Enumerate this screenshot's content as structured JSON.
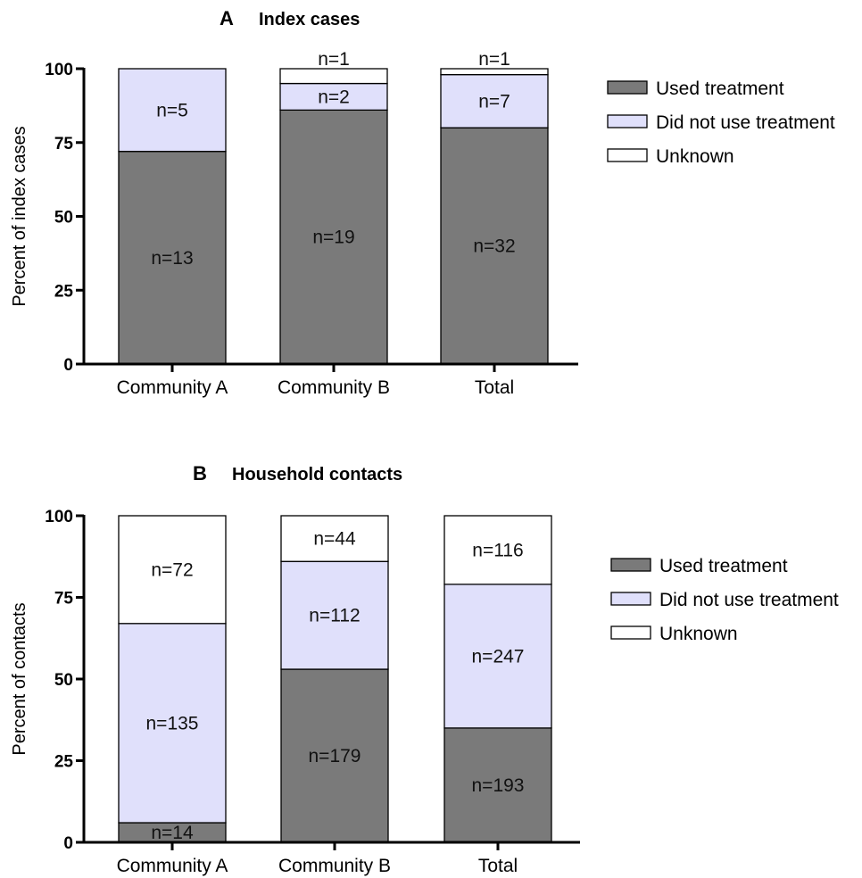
{
  "chart_data": [
    {
      "type": "bar",
      "stacked": true,
      "panel": "A",
      "title": "Index cases",
      "ylabel": "Percent of index cases",
      "xlabel": "",
      "ylim": [
        0,
        100
      ],
      "yticks": [
        0,
        25,
        50,
        75,
        100
      ],
      "categories": [
        "Community A",
        "Community B",
        "Total"
      ],
      "legend_position": "top-right",
      "series": [
        {
          "name": "Used treatment",
          "color": "#7a7a7a",
          "values": [
            72,
            86,
            80
          ],
          "labels": [
            "n=13",
            "n=19",
            "n=32"
          ]
        },
        {
          "name": "Did not use treatment",
          "color": "#e0e0fb",
          "values": [
            28,
            9,
            18
          ],
          "labels": [
            "n=5",
            "n=2",
            "n=7"
          ]
        },
        {
          "name": "Unknown",
          "color": "#ffffff",
          "values": [
            0,
            5,
            2
          ],
          "labels": [
            "",
            "n=1",
            "n=1"
          ]
        }
      ]
    },
    {
      "type": "bar",
      "stacked": true,
      "panel": "B",
      "title": "Household contacts",
      "ylabel": "Percent of contacts",
      "xlabel": "",
      "ylim": [
        0,
        100
      ],
      "yticks": [
        0,
        25,
        50,
        75,
        100
      ],
      "categories": [
        "Community A",
        "Community B",
        "Total"
      ],
      "legend_position": "top-right",
      "series": [
        {
          "name": "Used treatment",
          "color": "#7a7a7a",
          "values": [
            6,
            53,
            35
          ],
          "labels": [
            "n=14",
            "n=179",
            "n=193"
          ]
        },
        {
          "name": "Did not use treatment",
          "color": "#e0e0fb",
          "values": [
            61,
            33,
            44
          ],
          "labels": [
            "n=135",
            "n=112",
            "n=247"
          ]
        },
        {
          "name": "Unknown",
          "color": "#ffffff",
          "values": [
            33,
            14,
            21
          ],
          "labels": [
            "n=72",
            "n=44",
            "n=116"
          ]
        }
      ]
    }
  ]
}
